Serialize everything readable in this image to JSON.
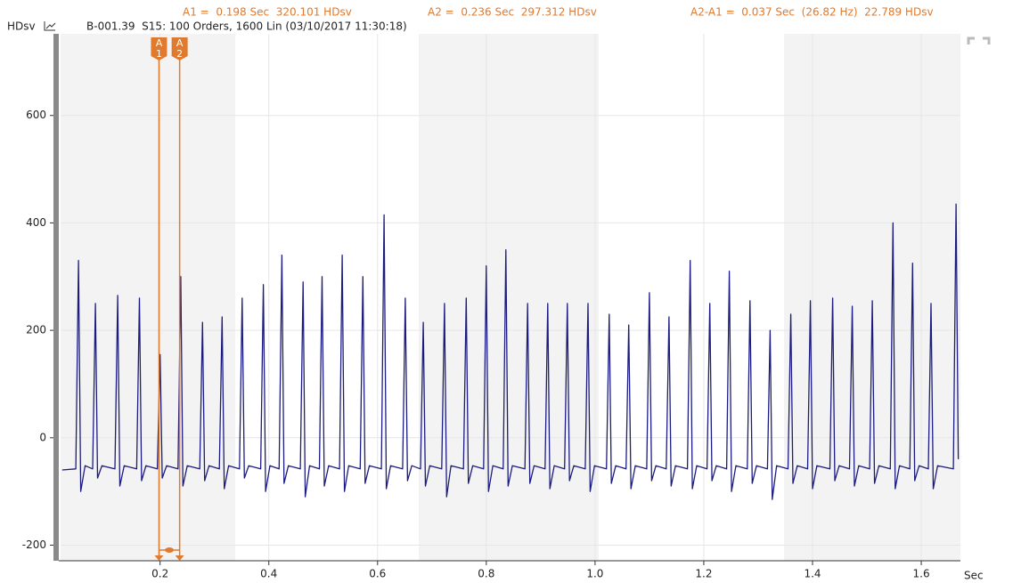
{
  "readouts": [
    "A1 =  0.198 Sec  320.101 HDsv",
    "A2 =  0.236 Sec  297.312 HDsv",
    "A2-A1 =  0.037 Sec  (26.82 Hz)  22.789 HDsv"
  ],
  "source": "B-001.39  S15: 100 Orders, 1600 Lin (03/10/2017 11:30:18)",
  "chart_data": {
    "type": "line",
    "ylabel": "HDsv",
    "xlabel": "Sec",
    "x": [
      0.02,
      0.045,
      0.05,
      0.054,
      0.062,
      0.076,
      0.081,
      0.085,
      0.093,
      0.117,
      0.122,
      0.126,
      0.134,
      0.157,
      0.162,
      0.166,
      0.174,
      0.195,
      0.2,
      0.204,
      0.212,
      0.233,
      0.238,
      0.242,
      0.25,
      0.273,
      0.278,
      0.282,
      0.29,
      0.309,
      0.314,
      0.318,
      0.326,
      0.346,
      0.351,
      0.355,
      0.363,
      0.385,
      0.39,
      0.394,
      0.402,
      0.419,
      0.424,
      0.428,
      0.436,
      0.458,
      0.463,
      0.467,
      0.475,
      0.493,
      0.498,
      0.502,
      0.51,
      0.53,
      0.535,
      0.539,
      0.547,
      0.568,
      0.573,
      0.577,
      0.585,
      0.607,
      0.612,
      0.616,
      0.624,
      0.646,
      0.651,
      0.655,
      0.663,
      0.679,
      0.684,
      0.688,
      0.696,
      0.718,
      0.723,
      0.727,
      0.735,
      0.758,
      0.763,
      0.767,
      0.775,
      0.795,
      0.8,
      0.804,
      0.812,
      0.831,
      0.836,
      0.84,
      0.848,
      0.871,
      0.876,
      0.88,
      0.888,
      0.908,
      0.913,
      0.917,
      0.925,
      0.944,
      0.949,
      0.953,
      0.961,
      0.982,
      0.987,
      0.991,
      0.999,
      1.021,
      1.026,
      1.03,
      1.038,
      1.057,
      1.062,
      1.066,
      1.074,
      1.095,
      1.1,
      1.104,
      1.112,
      1.131,
      1.136,
      1.14,
      1.148,
      1.17,
      1.175,
      1.179,
      1.187,
      1.206,
      1.211,
      1.215,
      1.223,
      1.242,
      1.247,
      1.251,
      1.259,
      1.28,
      1.285,
      1.289,
      1.297,
      1.317,
      1.322,
      1.326,
      1.334,
      1.355,
      1.36,
      1.364,
      1.372,
      1.391,
      1.396,
      1.4,
      1.408,
      1.432,
      1.437,
      1.441,
      1.449,
      1.468,
      1.473,
      1.477,
      1.485,
      1.505,
      1.51,
      1.514,
      1.522,
      1.543,
      1.548,
      1.552,
      1.56,
      1.579,
      1.584,
      1.588,
      1.596,
      1.613,
      1.618,
      1.622,
      1.63,
      1.659,
      1.664,
      1.668
    ],
    "series": [
      {
        "color": "#1c1c80",
        "values": [
          -60,
          -58,
          330,
          -100,
          -52,
          -58,
          250,
          -75,
          -52,
          -58,
          265,
          -90,
          -52,
          -58,
          260,
          -80,
          -52,
          -58,
          155,
          -75,
          -52,
          -58,
          300,
          -90,
          -52,
          -58,
          215,
          -80,
          -52,
          -58,
          225,
          -95,
          -52,
          -58,
          260,
          -75,
          -52,
          -58,
          285,
          -100,
          -52,
          -58,
          340,
          -85,
          -52,
          -58,
          290,
          -110,
          -52,
          -58,
          300,
          -90,
          -52,
          -58,
          340,
          -100,
          -52,
          -58,
          300,
          -85,
          -52,
          -58,
          415,
          -95,
          -52,
          -58,
          260,
          -80,
          -52,
          -58,
          215,
          -90,
          -52,
          -58,
          250,
          -110,
          -52,
          -58,
          260,
          -85,
          -52,
          -58,
          320,
          -100,
          -52,
          -58,
          350,
          -90,
          -52,
          -58,
          250,
          -85,
          -52,
          -58,
          250,
          -95,
          -52,
          -58,
          250,
          -80,
          -52,
          -58,
          250,
          -100,
          -52,
          -58,
          230,
          -85,
          -52,
          -58,
          210,
          -95,
          -52,
          -58,
          270,
          -80,
          -52,
          -58,
          225,
          -90,
          -52,
          -58,
          330,
          -95,
          -52,
          -58,
          250,
          -80,
          -52,
          -58,
          310,
          -100,
          -52,
          -58,
          255,
          -85,
          -52,
          -58,
          200,
          -115,
          -52,
          -58,
          230,
          -85,
          -52,
          -58,
          255,
          -95,
          -52,
          -58,
          260,
          -80,
          -52,
          -58,
          245,
          -90,
          -52,
          -58,
          255,
          -85,
          -52,
          -58,
          400,
          -95,
          -52,
          -58,
          325,
          -80,
          -52,
          -58,
          250,
          -95,
          -52,
          -58,
          435,
          -40
        ]
      }
    ],
    "cursors": [
      {
        "label": "A1",
        "x": 0.198,
        "color": "#e07a2e"
      },
      {
        "label": "A2",
        "x": 0.236,
        "color": "#e07a2e"
      }
    ],
    "xlim": [
      0.017,
      1.672
    ],
    "ylim": [
      -229,
      752
    ],
    "xticks": [
      0.2,
      0.4,
      0.6,
      0.8,
      {
        "value": 1,
        "label": "1.0"
      },
      1.2,
      1.4,
      1.6
    ],
    "yticks": [
      -200,
      0,
      200,
      400,
      600
    ],
    "grid": true
  }
}
